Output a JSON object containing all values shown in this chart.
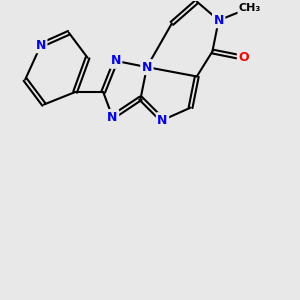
{
  "bg_color": "#e8e8e8",
  "bond_color": "#000000",
  "n_color": "#0000ff",
  "o_color": "#ff0000",
  "c_color": "#000000",
  "bond_width": 1.5,
  "font_size_atom": 9,
  "fig_width": 3.0,
  "fig_height": 3.0,
  "dpi": 100,
  "xlim": [
    0,
    10
  ],
  "ylim": [
    0,
    10
  ]
}
